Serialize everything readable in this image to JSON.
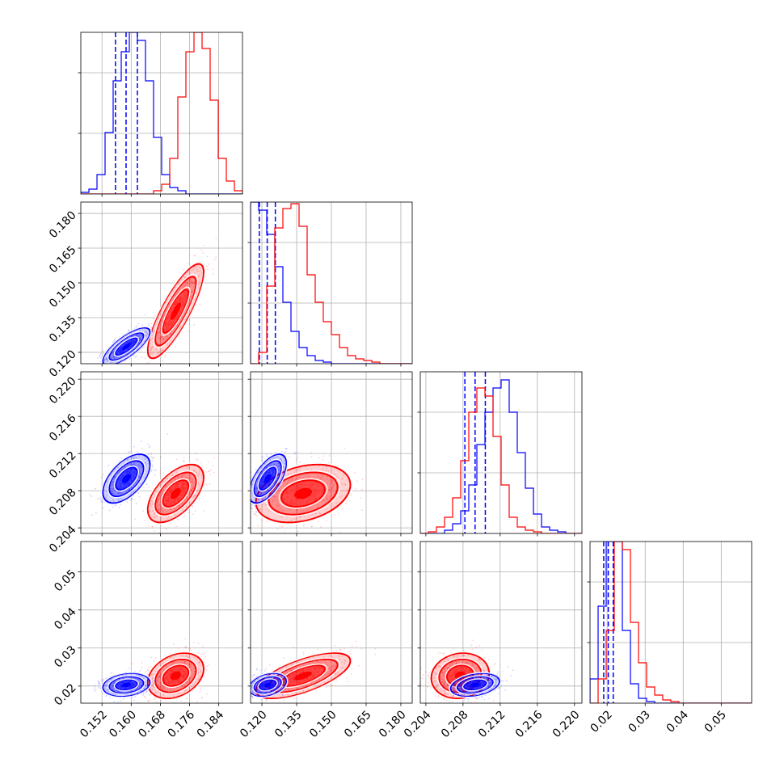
{
  "chart_data": {
    "type": "corner",
    "title": "",
    "parameters": [
      {
        "ticks": [
          0.152,
          0.16,
          0.168,
          0.176,
          0.184
        ],
        "tick_labels": [
          "0.152",
          "0.160",
          "0.168",
          "0.176",
          "0.184"
        ],
        "range": [
          0.1462,
          0.1905
        ]
      },
      {
        "ticks": [
          0.12,
          0.135,
          0.15,
          0.165,
          0.18
        ],
        "tick_labels": [
          "0.120",
          "0.135",
          "0.150",
          "0.165",
          "0.180"
        ],
        "range": [
          0.1151,
          0.1849
        ]
      },
      {
        "ticks": [
          0.204,
          0.208,
          0.212,
          0.216,
          0.22
        ],
        "tick_labels": [
          "0.204",
          "0.208",
          "0.212",
          "0.216",
          "0.220"
        ],
        "range": [
          0.2034,
          0.2208
        ]
      },
      {
        "ticks": [
          0.02,
          0.03,
          0.04,
          0.05
        ],
        "tick_labels": [
          "0.02",
          "0.03",
          "0.04",
          "0.05"
        ],
        "range": [
          0.0155,
          0.058
        ]
      }
    ],
    "grid": true,
    "series": [
      {
        "color": "#0000ff",
        "mean": [
          0.1587,
          0.1225,
          0.2093,
          0.0203
        ],
        "sd": [
          0.0027,
          0.0034,
          0.0011,
          0.0013
        ],
        "corr": {
          "0-1": 0.75,
          "0-2": 0.55,
          "1-2": 0.6,
          "0-3": 0.2,
          "1-3": 0.3,
          "2-3": 0.3
        },
        "quantiles": [
          [
            0.1557,
            0.1586,
            0.1617
          ],
          [
            0.1189,
            0.1223,
            0.1258
          ],
          [
            0.2082,
            0.2093,
            0.2104
          ],
          [
            0.0191,
            0.0203,
            0.0216
          ]
        ],
        "histograms": [
          [
            1,
            3,
            12,
            38,
            70,
            88,
            100,
            95,
            70,
            35,
            12,
            4,
            2,
            0,
            0,
            0,
            0,
            0,
            0,
            0
          ],
          [
            100,
            95,
            80,
            60,
            38,
            20,
            10,
            5,
            2,
            1,
            0,
            0,
            0,
            0,
            0,
            0,
            0,
            0,
            0,
            0
          ],
          [
            0,
            0,
            0,
            2,
            6,
            14,
            30,
            55,
            75,
            90,
            95,
            75,
            50,
            28,
            12,
            4,
            2,
            1,
            0,
            0
          ],
          [
            15,
            60,
            100,
            100,
            45,
            12,
            3,
            1,
            0,
            0,
            0,
            0,
            0,
            0,
            0,
            0,
            0,
            0,
            0,
            0
          ]
        ]
      },
      {
        "color": "#ff0000",
        "mean": [
          0.1722,
          0.1378,
          0.2077,
          0.0227
        ],
        "sd": [
          0.0032,
          0.0085,
          0.0013,
          0.0025
        ],
        "corr": {
          "0-1": 0.82,
          "0-2": 0.55,
          "1-2": 0.3,
          "0-3": 0.3,
          "1-3": 0.65,
          "2-3": 0.1
        },
        "quantiles": [
          [
            0.169,
            0.1722,
            0.1754
          ],
          [
            0.1293,
            0.1378,
            0.1463
          ],
          [
            0.2064,
            0.2077,
            0.209
          ],
          [
            0.0202,
            0.0227,
            0.0252
          ]
        ],
        "histograms": [
          [
            0,
            0,
            0,
            0,
            0,
            0,
            0,
            0,
            0,
            2,
            6,
            22,
            60,
            88,
            100,
            90,
            58,
            22,
            8,
            2
          ],
          [
            0,
            7,
            48,
            84,
            96,
            99,
            85,
            55,
            38,
            26,
            18,
            10,
            5,
            3,
            2,
            1,
            0,
            0,
            0,
            0
          ],
          [
            0,
            1,
            4,
            10,
            22,
            45,
            75,
            90,
            85,
            60,
            30,
            10,
            4,
            2,
            1,
            0,
            0,
            0,
            0,
            0
          ],
          [
            0,
            15,
            45,
            100,
            95,
            50,
            25,
            10,
            5,
            2,
            1,
            0,
            0,
            0,
            0,
            0,
            0,
            0,
            0,
            0
          ]
        ]
      }
    ]
  }
}
